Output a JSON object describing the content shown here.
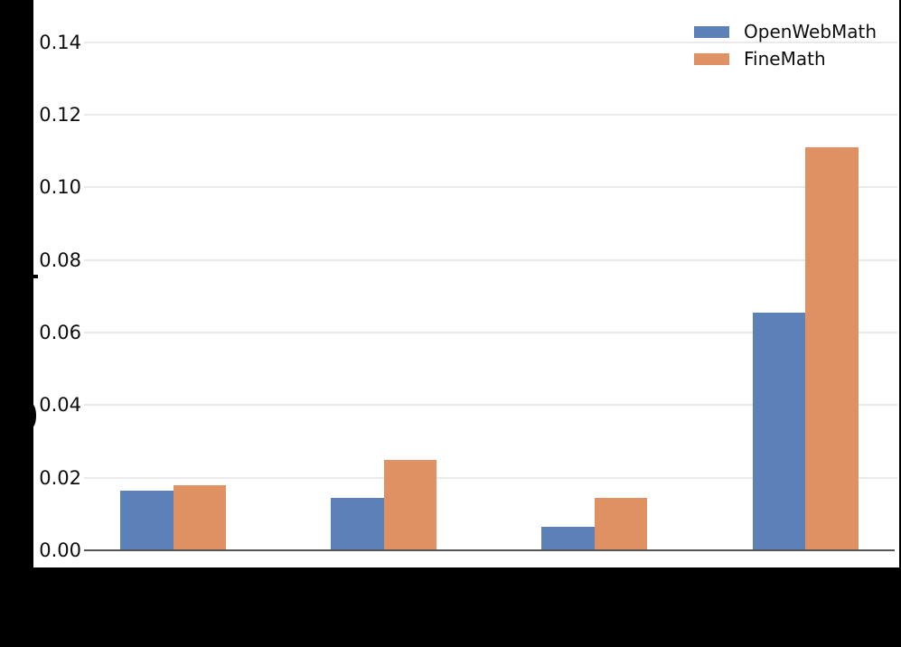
{
  "figure": {
    "background_color": "#000000",
    "plot_background_color": "#ffffff",
    "gridline_color": "#e9e9e9",
    "axis_spine_color": "#555555"
  },
  "legend": {
    "items": [
      {
        "label": "OpenWebMath",
        "color": "#5b81b8"
      },
      {
        "label": "FineMath",
        "color": "#e09163"
      }
    ]
  },
  "chart_data": {
    "type": "bar",
    "title": "",
    "xlabel": "",
    "ylabel": "",
    "categories": [
      "",
      "",
      "",
      ""
    ],
    "categories_note": "x-axis tick labels are not visible in the image (black text on black background)",
    "series": [
      {
        "name": "OpenWebMath",
        "color": "#5b81b8",
        "values": [
          0.0165,
          0.0145,
          0.0065,
          0.0655
        ]
      },
      {
        "name": "FineMath",
        "color": "#e09163",
        "values": [
          0.018,
          0.025,
          0.0145,
          0.111
        ]
      }
    ],
    "yticks": [
      {
        "value": 0.0,
        "label": "0.00"
      },
      {
        "value": 0.02,
        "label": "0.02"
      },
      {
        "value": 0.04,
        "label": "0.04"
      },
      {
        "value": 0.06,
        "label": "0.06"
      },
      {
        "value": 0.08,
        "label": "0.08"
      },
      {
        "value": 0.1,
        "label": "0.10"
      },
      {
        "value": 0.12,
        "label": "0.12"
      },
      {
        "value": 0.14,
        "label": "0.14"
      }
    ],
    "ylim": [
      0,
      0.1515
    ],
    "grid": "horizontal",
    "legend_position": "upper right"
  }
}
